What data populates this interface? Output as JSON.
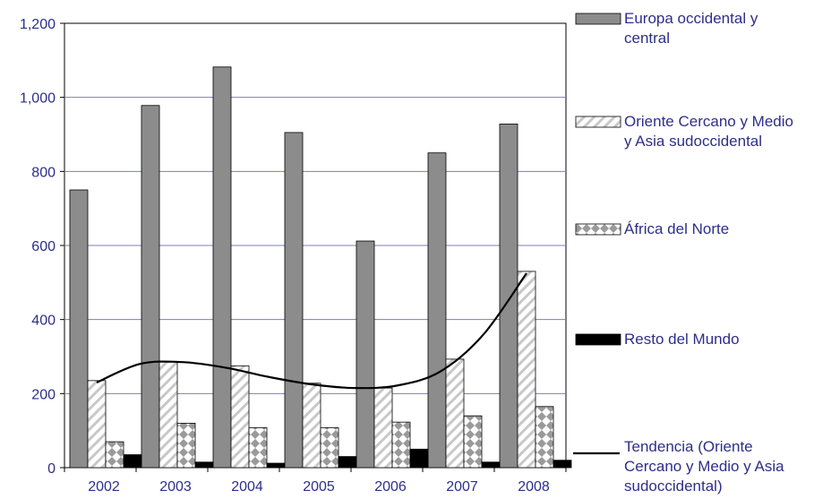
{
  "chart_data": {
    "type": "bar",
    "categories": [
      "2002",
      "2003",
      "2004",
      "2005",
      "2006",
      "2007",
      "2008"
    ],
    "ylim": [
      0,
      1200
    ],
    "yticks": [
      0,
      200,
      400,
      600,
      800,
      1000,
      1200
    ],
    "ytick_labels": [
      "0",
      "200",
      "400",
      "600",
      "800",
      "1,000",
      "1,200"
    ],
    "grid": true,
    "legend_position": "right",
    "series": [
      {
        "name": "Europa occidental y central",
        "name_lines": [
          "Europa occidental y",
          "central"
        ],
        "pattern": "solid-gray",
        "values": [
          750,
          978,
          1082,
          905,
          612,
          850,
          928
        ]
      },
      {
        "name": "Oriente Cercano y Medio y Asia sudoccidental",
        "name_lines": [
          "Oriente Cercano y Medio",
          "y Asia sudoccidental"
        ],
        "pattern": "diagonal-hatch",
        "values": [
          235,
          285,
          275,
          228,
          215,
          293,
          530
        ]
      },
      {
        "name": "África del Norte",
        "name_lines": [
          "África del Norte"
        ],
        "pattern": "diamond",
        "values": [
          70,
          120,
          108,
          108,
          123,
          140,
          165
        ]
      },
      {
        "name": "Resto del Mundo",
        "name_lines": [
          "Resto del Mundo"
        ],
        "pattern": "solid-black",
        "values": [
          35,
          15,
          12,
          30,
          50,
          15,
          20
        ]
      }
    ],
    "trendline": {
      "name": "Tendencia (Oriente Cercano y Medio y Asia sudoccidental)",
      "name_lines": [
        "Tendencia (Oriente",
        "Cercano y Medio y Asia",
        "sudoccidental)"
      ],
      "of_series": "Oriente Cercano y Medio y Asia sudoccidental",
      "values": [
        230,
        280,
        285,
        270,
        245,
        225,
        215,
        222,
        260,
        360,
        525
      ],
      "x_positions": [
        0.0,
        0.6,
        1.2,
        1.8,
        2.4,
        3.0,
        3.6,
        4.2,
        4.8,
        5.4,
        6.0
      ]
    },
    "colors": {
      "europa": "#8c8c8c",
      "axis_text": "#2e2e8a",
      "grid": "#8080b0",
      "trend": "#000000"
    }
  }
}
